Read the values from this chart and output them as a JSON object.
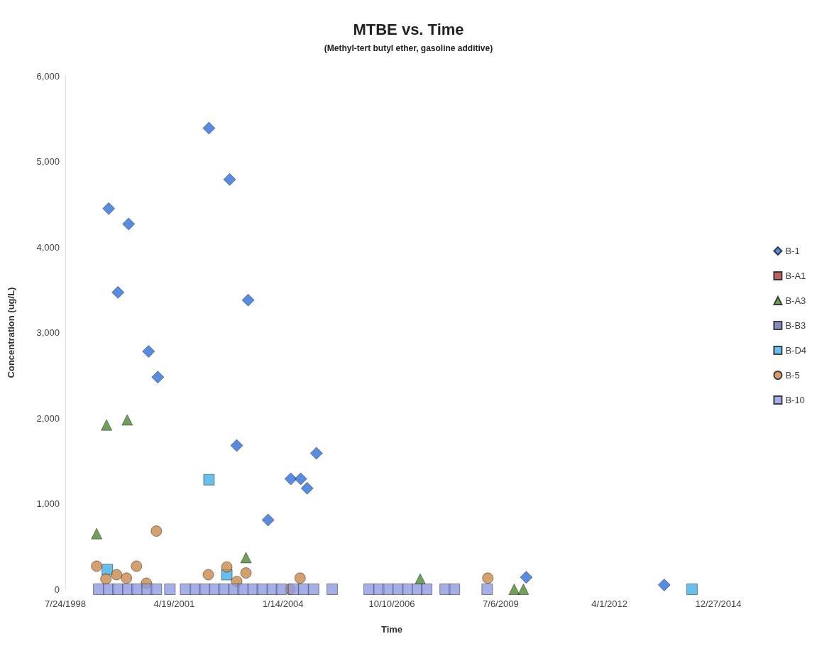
{
  "chart_data": {
    "type": "scatter",
    "title": "MTBE vs. Time",
    "subtitle": "(Methyl-tert butyl ether, gasoline additive)",
    "xlabel": "Time",
    "ylabel": "Concentration (ug/L)",
    "xlim": [
      "1998-07-24",
      "2014-12-27"
    ],
    "xticks": [
      {
        "value": "1998-07-24",
        "label": "7/24/1998"
      },
      {
        "value": "2001-04-19",
        "label": "4/19/2001"
      },
      {
        "value": "2004-01-14",
        "label": "1/14/2004"
      },
      {
        "value": "2006-10-10",
        "label": "10/10/2006"
      },
      {
        "value": "2009-07-06",
        "label": "7/6/2009"
      },
      {
        "value": "2012-04-01",
        "label": "4/1/2012"
      },
      {
        "value": "2014-12-27",
        "label": "12/27/2014"
      }
    ],
    "ylim": [
      0,
      6000
    ],
    "yticks": [
      0,
      {
        "value": 1000,
        "label": "1,000"
      },
      {
        "value": 2000,
        "label": "2,000"
      },
      {
        "value": 3000,
        "label": "3,000"
      },
      {
        "value": 4000,
        "label": "4,000"
      },
      {
        "value": 5000,
        "label": "5,000"
      },
      {
        "value": 6000,
        "label": "6,000"
      }
    ],
    "grid": false,
    "legend": "right",
    "series": [
      {
        "name": "B-1",
        "color": "#2e6fd8",
        "marker": "diamond",
        "x": [
          "1999-08-27",
          "1999-11-20",
          "2000-02-26",
          "2000-08-27",
          "2000-11-20",
          "2002-03-05",
          "2002-09-11",
          "2002-11-15",
          "2003-02-28",
          "2003-08-30",
          "2004-03-26",
          "2004-06-25",
          "2004-08-23",
          "2004-11-16",
          "2010-02-26",
          "2013-08-17"
        ],
        "values": [
          4450,
          3470,
          4270,
          2780,
          2480,
          5390,
          4790,
          1680,
          3380,
          810,
          1290,
          1290,
          1180,
          1590,
          140,
          50
        ]
      },
      {
        "name": "B-A1",
        "color": "#b03a3a",
        "marker": "square"
      },
      {
        "name": "B-A3",
        "color": "#4e8a2e",
        "marker": "triangle",
        "x": [
          "1999-05-08",
          "1999-08-07",
          "2000-02-13",
          "2003-02-08",
          "2007-06-28",
          "2009-11-07",
          "2010-01-31"
        ],
        "values": [
          650,
          1920,
          1980,
          370,
          120,
          0,
          0
        ]
      },
      {
        "name": "B-B3",
        "color": "#6a70b0",
        "marker": "square"
      },
      {
        "name": "B-D4",
        "color": "#3fb0e8",
        "marker": "square",
        "x": [
          "1999-08-14",
          "2002-03-05",
          "2002-08-16",
          "2003-06-06",
          "2006-06-27",
          "2014-04-29"
        ],
        "values": [
          230,
          1280,
          170,
          null,
          null,
          0
        ]
      },
      {
        "name": "B-5",
        "color": "#c8884a",
        "marker": "circle",
        "x": [
          "1999-05-08",
          "1999-08-01",
          "1999-11-07",
          "2000-02-06",
          "2000-05-08",
          "2000-08-07",
          "2000-11-07",
          "2002-02-27",
          "2002-08-16",
          "2002-11-15",
          "2003-02-08",
          "2004-03-19",
          "2004-06-19",
          "2004-10-28",
          "2009-03-10"
        ],
        "values": [
          270,
          120,
          170,
          130,
          270,
          70,
          680,
          170,
          260,
          90,
          190,
          0,
          130,
          null,
          130
        ]
      },
      {
        "name": "B-10",
        "color": "#8f9ae0",
        "marker": "square",
        "x": [
          "1999-05-27",
          "1999-08-27",
          "1999-11-20",
          "2000-02-19",
          "2000-05-14",
          "2000-08-14",
          "2000-11-07",
          "2001-03-11",
          "2001-08-02",
          "2001-11-01",
          "2002-01-25",
          "2002-04-27",
          "2002-07-21",
          "2002-10-20",
          "2003-01-13",
          "2003-04-15",
          "2003-07-08",
          "2003-10-08",
          "2004-01-01",
          "2004-04-21",
          "2004-07-22",
          "2004-10-21",
          "2005-04-10",
          "2006-03-15",
          "2006-06-14",
          "2006-09-07",
          "2006-12-08",
          "2007-03-03",
          "2007-06-02",
          "2007-08-26",
          "2008-02-12",
          "2008-05-07",
          "2009-03-04"
        ],
        "values": [
          0,
          0,
          0,
          0,
          0,
          0,
          0,
          0,
          0,
          0,
          0,
          0,
          0,
          0,
          0,
          0,
          0,
          0,
          0,
          0,
          0,
          0,
          0,
          0,
          0,
          0,
          0,
          0,
          0,
          0,
          0,
          0,
          0
        ]
      }
    ]
  }
}
